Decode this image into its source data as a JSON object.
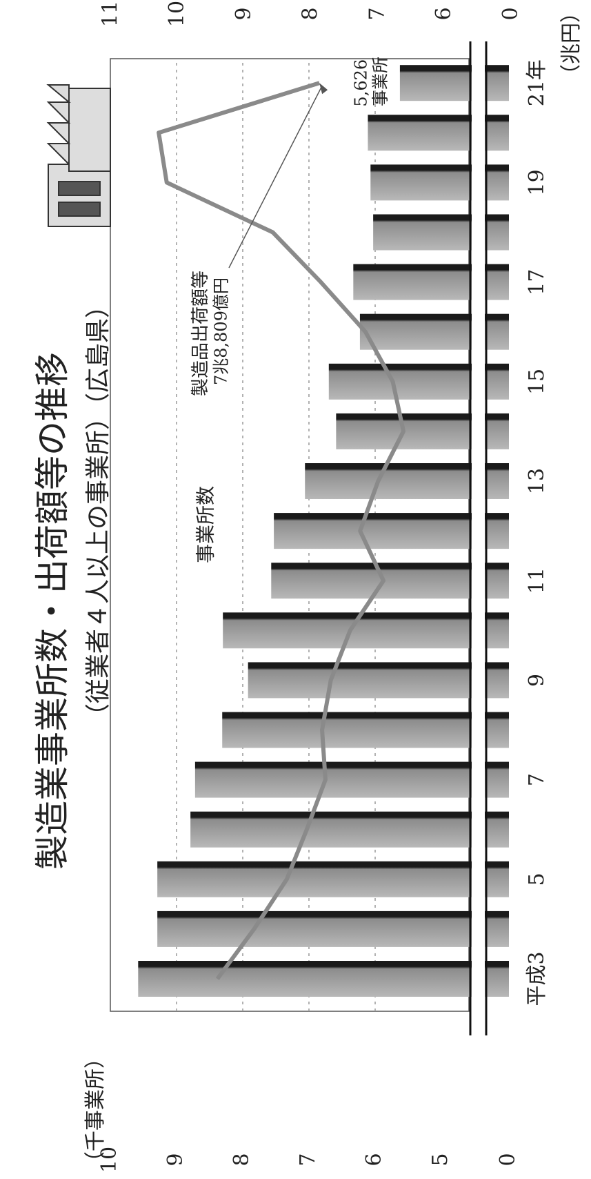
{
  "chart_data": {
    "type": "bar",
    "title": "製造業事業所数・出荷額等の推移",
    "subtitle": "（従業者４人以上の事業所）（広島県）",
    "categories": [
      "平成3",
      null,
      "5",
      null,
      "7",
      null,
      "9",
      null,
      "11",
      null,
      "13",
      null,
      "15",
      null,
      "17",
      null,
      "19",
      null,
      "21年"
    ],
    "series": [
      {
        "name": "事業所数",
        "type": "bar",
        "color": "#777777",
        "values": [
          9.58,
          9.29,
          9.29,
          8.79,
          8.72,
          8.31,
          7.92,
          8.3,
          7.57,
          7.53,
          7.06,
          6.59,
          6.7,
          6.23,
          6.33,
          6.03,
          6.07,
          6.11,
          5.626
        ],
        "value_labels": [
          null,
          null,
          null,
          null,
          null,
          null,
          null,
          null,
          null,
          null,
          null,
          null,
          null,
          null,
          null,
          null,
          null,
          null,
          "5,626"
        ]
      },
      {
        "name": "製造品出荷額等",
        "type": "line",
        "axis": "y2",
        "color": "#8a8a8a",
        "values": [
          9.41,
          8.86,
          8.37,
          8.07,
          7.79,
          7.84,
          7.71,
          7.42,
          6.92,
          7.27,
          7.0,
          6.62,
          6.78,
          7.19,
          7.86,
          8.58,
          10.17,
          10.29,
          7.8809
        ],
        "value_labels": [
          null,
          null,
          null,
          null,
          null,
          null,
          null,
          null,
          null,
          null,
          null,
          null,
          null,
          null,
          null,
          null,
          null,
          null,
          "7兆8,809億円"
        ]
      }
    ],
    "ylabel": "（千事業所）",
    "y2label": "（兆円）",
    "ylim": [
      0,
      10
    ],
    "yticks": [
      0,
      5,
      6,
      7,
      8,
      9,
      10
    ],
    "y2lim": [
      0,
      11
    ],
    "y2ticks": [
      0,
      6,
      7,
      8,
      9,
      10,
      11
    ],
    "axis_break": true,
    "grid": true,
    "annotations": [
      "事業所"
    ]
  }
}
